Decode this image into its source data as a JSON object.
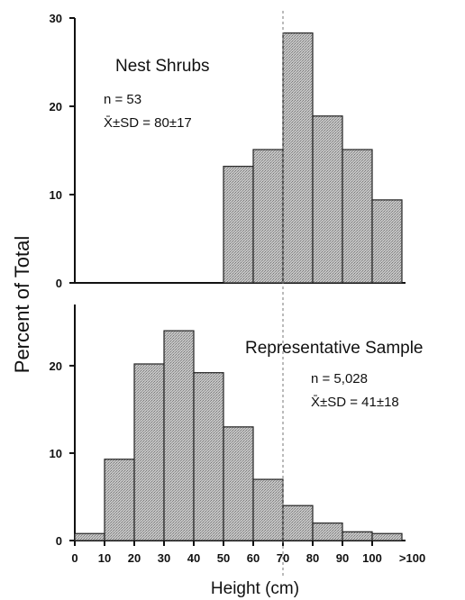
{
  "chart_data": {
    "type": "bar",
    "ylabel": "Percent of Total",
    "xlabel": "Height (cm)",
    "x_tick_labels": [
      "0",
      "10",
      "20",
      "30",
      "40",
      "50",
      "60",
      "70",
      "80",
      "90",
      "100",
      ">100"
    ],
    "bins": [
      "0-10",
      "10-20",
      "20-30",
      "30-40",
      "40-50",
      "50-60",
      "60-70",
      "70-80",
      "80-90",
      "90-100",
      ">100"
    ],
    "reference_line_x": 70,
    "bar_color": "#b9b9b9",
    "panels": [
      {
        "title": "Nest Shrubs",
        "n_label": "n = 53",
        "stat_label": "X̄±SD = 80±17",
        "ylim": [
          0,
          30
        ],
        "yticks": [
          0,
          10,
          20,
          30
        ],
        "values": [
          0,
          0,
          0,
          0,
          0,
          13.2,
          15.1,
          28.3,
          18.9,
          15.1,
          9.4
        ]
      },
      {
        "title": "Representative Sample",
        "n_label": "n = 5,028",
        "stat_label": "X̄±SD = 41±18",
        "ylim": [
          0,
          27
        ],
        "yticks": [
          0,
          10,
          20
        ],
        "values": [
          0.8,
          9.3,
          20.2,
          24.0,
          19.2,
          13.0,
          7.0,
          4.0,
          2.0,
          1.0,
          0.8
        ]
      }
    ]
  }
}
